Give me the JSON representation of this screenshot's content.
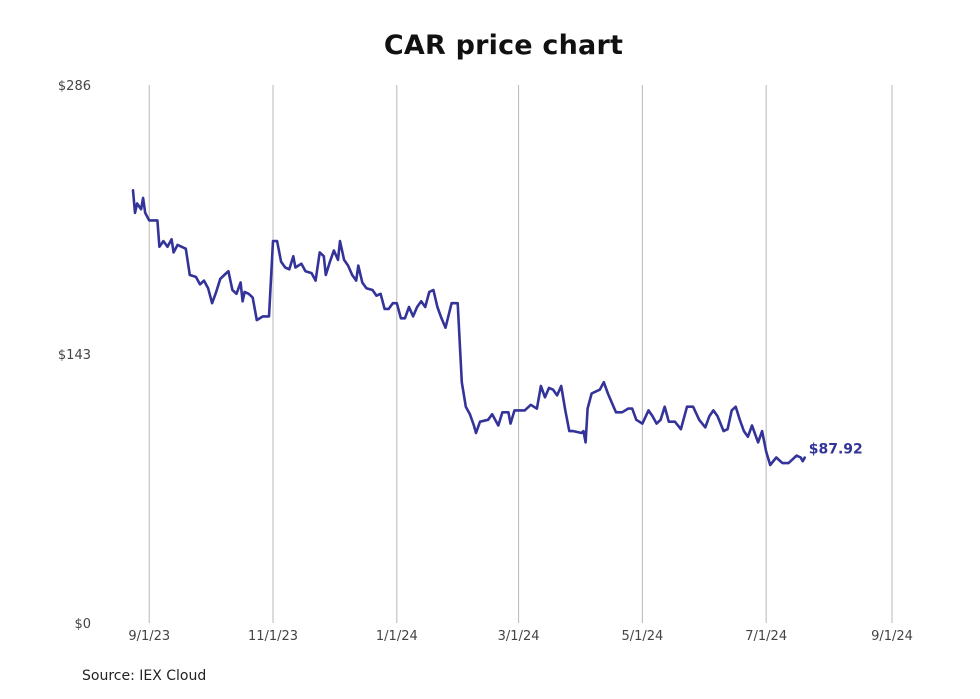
{
  "chart_data": {
    "type": "line",
    "title": "CAR price chart",
    "xlabel": "",
    "ylabel": "",
    "x_tick_labels": [
      "9/1/23",
      "11/1/23",
      "1/1/24",
      "3/1/24",
      "5/1/24",
      "7/1/24",
      "9/1/24"
    ],
    "x_tick_dates": [
      "2023-09-01",
      "2023-11-01",
      "2024-01-01",
      "2024-03-01",
      "2024-05-01",
      "2024-07-01",
      "2024-09-01"
    ],
    "y_tick_labels": [
      "$0",
      "$143",
      "$286"
    ],
    "y_tick_values": [
      0,
      143,
      286
    ],
    "ylim": [
      0,
      286
    ],
    "xlim": [
      "2023-08-24",
      "2024-09-01"
    ],
    "grid": "vertical",
    "line_color": "#333399",
    "series": [
      {
        "name": "",
        "end_label": "$87.92",
        "points": [
          [
            "2023-08-24",
            230
          ],
          [
            "2023-08-25",
            218
          ],
          [
            "2023-08-26",
            223
          ],
          [
            "2023-08-28",
            220
          ],
          [
            "2023-08-29",
            226
          ],
          [
            "2023-08-30",
            218
          ],
          [
            "2023-09-01",
            214
          ],
          [
            "2023-09-05",
            214
          ],
          [
            "2023-09-06",
            200
          ],
          [
            "2023-09-08",
            203
          ],
          [
            "2023-09-10",
            200
          ],
          [
            "2023-09-12",
            204
          ],
          [
            "2023-09-13",
            197
          ],
          [
            "2023-09-15",
            201
          ],
          [
            "2023-09-19",
            199
          ],
          [
            "2023-09-21",
            185
          ],
          [
            "2023-09-24",
            184
          ],
          [
            "2023-09-26",
            180
          ],
          [
            "2023-09-28",
            182
          ],
          [
            "2023-09-30",
            178
          ],
          [
            "2023-10-02",
            170
          ],
          [
            "2023-10-04",
            176
          ],
          [
            "2023-10-06",
            183
          ],
          [
            "2023-10-08",
            185
          ],
          [
            "2023-10-10",
            187
          ],
          [
            "2023-10-12",
            177
          ],
          [
            "2023-10-14",
            175
          ],
          [
            "2023-10-16",
            181
          ],
          [
            "2023-10-17",
            171
          ],
          [
            "2023-10-18",
            176
          ],
          [
            "2023-10-20",
            175
          ],
          [
            "2023-10-22",
            173
          ],
          [
            "2023-10-24",
            161
          ],
          [
            "2023-10-27",
            163
          ],
          [
            "2023-10-30",
            163
          ],
          [
            "2023-11-01",
            203
          ],
          [
            "2023-11-03",
            203
          ],
          [
            "2023-11-05",
            192
          ],
          [
            "2023-11-07",
            189
          ],
          [
            "2023-11-09",
            188
          ],
          [
            "2023-11-11",
            195
          ],
          [
            "2023-11-12",
            189
          ],
          [
            "2023-11-15",
            191
          ],
          [
            "2023-11-17",
            187
          ],
          [
            "2023-11-20",
            186
          ],
          [
            "2023-11-22",
            182
          ],
          [
            "2023-11-24",
            197
          ],
          [
            "2023-11-26",
            195
          ],
          [
            "2023-11-27",
            185
          ],
          [
            "2023-11-29",
            192
          ],
          [
            "2023-12-01",
            198
          ],
          [
            "2023-12-03",
            193
          ],
          [
            "2023-12-04",
            203
          ],
          [
            "2023-12-06",
            193
          ],
          [
            "2023-12-08",
            190
          ],
          [
            "2023-12-10",
            185
          ],
          [
            "2023-12-12",
            182
          ],
          [
            "2023-12-13",
            190
          ],
          [
            "2023-12-15",
            181
          ],
          [
            "2023-12-17",
            178
          ],
          [
            "2023-12-20",
            177
          ],
          [
            "2023-12-22",
            174
          ],
          [
            "2023-12-24",
            175
          ],
          [
            "2023-12-26",
            167
          ],
          [
            "2023-12-28",
            167
          ],
          [
            "2023-12-30",
            170
          ],
          [
            "2024-01-01",
            170
          ],
          [
            "2024-01-03",
            162
          ],
          [
            "2024-01-05",
            162
          ],
          [
            "2024-01-07",
            168
          ],
          [
            "2024-01-09",
            163
          ],
          [
            "2024-01-11",
            168
          ],
          [
            "2024-01-13",
            171
          ],
          [
            "2024-01-15",
            168
          ],
          [
            "2024-01-17",
            176
          ],
          [
            "2024-01-19",
            177
          ],
          [
            "2024-01-21",
            168
          ],
          [
            "2024-01-23",
            162
          ],
          [
            "2024-01-25",
            157
          ],
          [
            "2024-01-28",
            170
          ],
          [
            "2024-01-31",
            170
          ],
          [
            "2024-02-02",
            128
          ],
          [
            "2024-02-04",
            115
          ],
          [
            "2024-02-06",
            111
          ],
          [
            "2024-02-08",
            105
          ],
          [
            "2024-02-09",
            101
          ],
          [
            "2024-02-11",
            107
          ],
          [
            "2024-02-15",
            108
          ],
          [
            "2024-02-17",
            111
          ],
          [
            "2024-02-20",
            105
          ],
          [
            "2024-02-22",
            112
          ],
          [
            "2024-02-25",
            112
          ],
          [
            "2024-02-26",
            106
          ],
          [
            "2024-02-28",
            113
          ],
          [
            "2024-03-02",
            113
          ],
          [
            "2024-03-04",
            113
          ],
          [
            "2024-03-07",
            116
          ],
          [
            "2024-03-10",
            114
          ],
          [
            "2024-03-12",
            126
          ],
          [
            "2024-03-14",
            120
          ],
          [
            "2024-03-16",
            125
          ],
          [
            "2024-03-18",
            124
          ],
          [
            "2024-03-20",
            121
          ],
          [
            "2024-03-22",
            126
          ],
          [
            "2024-03-24",
            113
          ],
          [
            "2024-03-26",
            102
          ],
          [
            "2024-03-28",
            102
          ],
          [
            "2024-04-01",
            101
          ],
          [
            "2024-04-02",
            102
          ],
          [
            "2024-04-03",
            96
          ],
          [
            "2024-04-04",
            114
          ],
          [
            "2024-04-06",
            122
          ],
          [
            "2024-04-08",
            123
          ],
          [
            "2024-04-10",
            124
          ],
          [
            "2024-04-12",
            128
          ],
          [
            "2024-04-14",
            122
          ],
          [
            "2024-04-16",
            117
          ],
          [
            "2024-04-18",
            112
          ],
          [
            "2024-04-21",
            112
          ],
          [
            "2024-04-24",
            114
          ],
          [
            "2024-04-26",
            114
          ],
          [
            "2024-04-28",
            108
          ],
          [
            "2024-05-01",
            106
          ],
          [
            "2024-05-04",
            113
          ],
          [
            "2024-05-06",
            110
          ],
          [
            "2024-05-08",
            106
          ],
          [
            "2024-05-10",
            108
          ],
          [
            "2024-05-12",
            115
          ],
          [
            "2024-05-14",
            107
          ],
          [
            "2024-05-17",
            107
          ],
          [
            "2024-05-20",
            103
          ],
          [
            "2024-05-23",
            115
          ],
          [
            "2024-05-26",
            115
          ],
          [
            "2024-05-29",
            108
          ],
          [
            "2024-06-01",
            104
          ],
          [
            "2024-06-03",
            110
          ],
          [
            "2024-06-05",
            113
          ],
          [
            "2024-06-07",
            110
          ],
          [
            "2024-06-10",
            102
          ],
          [
            "2024-06-12",
            103
          ],
          [
            "2024-06-14",
            113
          ],
          [
            "2024-06-16",
            115
          ],
          [
            "2024-06-18",
            108
          ],
          [
            "2024-06-20",
            102
          ],
          [
            "2024-06-22",
            99
          ],
          [
            "2024-06-24",
            105
          ],
          [
            "2024-06-27",
            96
          ],
          [
            "2024-06-29",
            102
          ],
          [
            "2024-07-01",
            91
          ],
          [
            "2024-07-03",
            84
          ],
          [
            "2024-07-06",
            88
          ],
          [
            "2024-07-09",
            85
          ],
          [
            "2024-07-12",
            85
          ],
          [
            "2024-07-14",
            87
          ],
          [
            "2024-07-16",
            89
          ],
          [
            "2024-07-18",
            88
          ],
          [
            "2024-07-19",
            86
          ],
          [
            "2024-07-20",
            87.92
          ]
        ]
      }
    ],
    "source": "Source: IEX Cloud"
  }
}
